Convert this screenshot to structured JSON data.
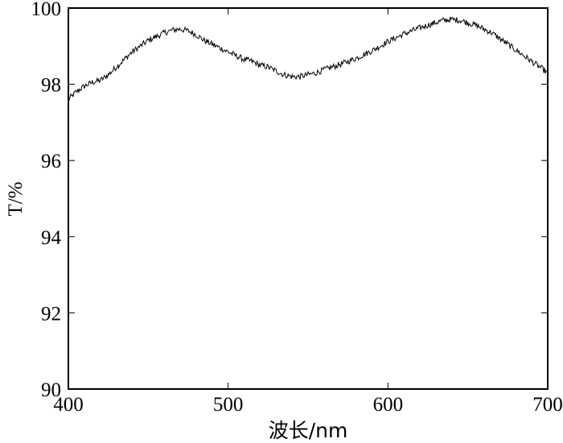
{
  "chart_data": {
    "type": "line",
    "xlabel": "波长/nm",
    "ylabel": "T/%",
    "xlim": [
      400,
      700
    ],
    "ylim": [
      90,
      100
    ],
    "x_ticks": [
      400,
      500,
      600,
      700
    ],
    "y_ticks": [
      90,
      92,
      94,
      96,
      98,
      100
    ],
    "grid": false,
    "series": [
      {
        "x": [
          400,
          405,
          410,
          415,
          420,
          425,
          430,
          435,
          440,
          445,
          450,
          455,
          460,
          465,
          470,
          475,
          480,
          485,
          490,
          495,
          500,
          505,
          510,
          515,
          520,
          525,
          530,
          535,
          540,
          545,
          550,
          555,
          560,
          565,
          570,
          575,
          580,
          585,
          590,
          595,
          600,
          605,
          610,
          615,
          620,
          625,
          630,
          635,
          640,
          645,
          650,
          655,
          660,
          665,
          670,
          675,
          680,
          685,
          690,
          695,
          700
        ],
        "y": [
          97.6,
          97.8,
          97.95,
          98.05,
          98.1,
          98.25,
          98.45,
          98.65,
          98.85,
          99.0,
          99.15,
          99.25,
          99.35,
          99.42,
          99.45,
          99.4,
          99.3,
          99.15,
          99.05,
          98.95,
          98.85,
          98.75,
          98.65,
          98.6,
          98.5,
          98.45,
          98.35,
          98.25,
          98.2,
          98.2,
          98.25,
          98.3,
          98.38,
          98.45,
          98.52,
          98.6,
          98.68,
          98.78,
          98.88,
          99.0,
          99.12,
          99.22,
          99.32,
          99.4,
          99.48,
          99.55,
          99.62,
          99.68,
          99.7,
          99.68,
          99.62,
          99.55,
          99.45,
          99.35,
          99.2,
          99.05,
          98.9,
          98.75,
          98.6,
          98.45,
          98.3
        ]
      }
    ]
  }
}
